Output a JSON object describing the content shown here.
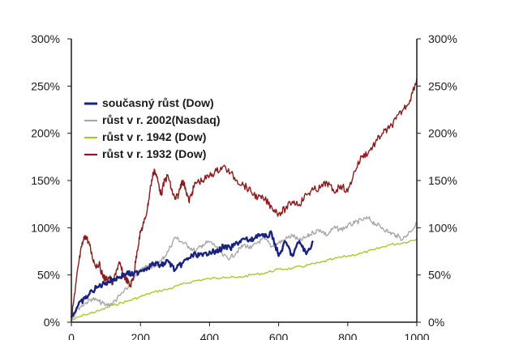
{
  "chart_data": {
    "type": "line",
    "title": "",
    "xlabel": "",
    "ylabel": "",
    "xlim": [
      0,
      1000
    ],
    "ylim": [
      0,
      300
    ],
    "x_ticks": [
      0,
      200,
      400,
      600,
      800,
      1000
    ],
    "x_tick_labels": [
      "0",
      "200",
      "400",
      "600",
      "800",
      "1000"
    ],
    "y_ticks": [
      0,
      50,
      100,
      150,
      200,
      250,
      300
    ],
    "y_tick_labels": [
      "0%",
      "50%",
      "100%",
      "150%",
      "200%",
      "250%",
      "300%"
    ],
    "right_axis_tick_labels": [
      "0%",
      "50%",
      "100%",
      "150%",
      "200%",
      "250%",
      "300%"
    ],
    "grid": false,
    "legend_position": "top-left",
    "legend": [
      {
        "label": "současný růst (Dow)",
        "color": "#1a237e"
      },
      {
        "label": "růst v r. 2002(Nasdaq)",
        "color": "#a8a8a8"
      },
      {
        "label": "růst v r. 1942 (Dow)",
        "color": "#a8c830"
      },
      {
        "label": "růst v r. 1932 (Dow)",
        "color": "#8b1a1a"
      }
    ],
    "series": [
      {
        "name": "současný růst (Dow)",
        "color": "#1a237e",
        "x": [
          0,
          20,
          40,
          60,
          80,
          100,
          120,
          140,
          160,
          180,
          200,
          220,
          240,
          260,
          280,
          300,
          320,
          340,
          360,
          380,
          400,
          420,
          440,
          460,
          480,
          500,
          520,
          540,
          560,
          580,
          600,
          620,
          640,
          660,
          680,
          700
        ],
        "y": [
          5,
          18,
          25,
          33,
          38,
          42,
          45,
          48,
          52,
          50,
          55,
          58,
          62,
          60,
          65,
          55,
          62,
          68,
          72,
          70,
          75,
          74,
          80,
          78,
          84,
          88,
          86,
          93,
          90,
          94,
          70,
          85,
          70,
          86,
          72,
          86
        ]
      },
      {
        "name": "růst v r. 2002(Nasdaq)",
        "color": "#a8a8a8",
        "x": [
          0,
          20,
          40,
          60,
          80,
          100,
          120,
          140,
          160,
          180,
          200,
          220,
          240,
          260,
          280,
          300,
          320,
          340,
          360,
          380,
          400,
          420,
          440,
          460,
          480,
          500,
          520,
          540,
          560,
          580,
          600,
          620,
          640,
          660,
          680,
          700,
          720,
          740,
          760,
          780,
          800,
          820,
          840,
          860,
          880,
          900,
          920,
          940,
          960,
          980,
          1000
        ],
        "y": [
          3,
          15,
          20,
          25,
          22,
          18,
          20,
          28,
          35,
          45,
          55,
          60,
          58,
          65,
          75,
          90,
          85,
          80,
          75,
          82,
          85,
          80,
          70,
          68,
          75,
          82,
          78,
          85,
          88,
          80,
          84,
          88,
          92,
          86,
          90,
          95,
          98,
          92,
          100,
          98,
          102,
          105,
          108,
          110,
          104,
          100,
          95,
          92,
          88,
          96,
          104
        ]
      },
      {
        "name": "růst v r. 1942 (Dow)",
        "color": "#a8c830",
        "x": [
          0,
          40,
          80,
          120,
          160,
          200,
          240,
          280,
          320,
          360,
          400,
          440,
          480,
          520,
          560,
          600,
          640,
          680,
          720,
          760,
          800,
          840,
          880,
          920,
          960,
          1000
        ],
        "y": [
          2,
          8,
          12,
          18,
          22,
          27,
          32,
          35,
          40,
          44,
          46,
          48,
          47,
          50,
          52,
          56,
          57,
          60,
          63,
          67,
          70,
          73,
          77,
          82,
          84,
          88
        ]
      },
      {
        "name": "růst v r. 1932 (Dow)",
        "color": "#8b1a1a",
        "x": [
          0,
          10,
          20,
          30,
          40,
          50,
          60,
          70,
          80,
          90,
          100,
          110,
          120,
          130,
          140,
          150,
          160,
          170,
          180,
          190,
          200,
          210,
          220,
          230,
          240,
          250,
          260,
          270,
          280,
          290,
          300,
          310,
          320,
          330,
          340,
          350,
          360,
          380,
          400,
          420,
          440,
          460,
          480,
          500,
          520,
          540,
          560,
          580,
          600,
          620,
          640,
          660,
          680,
          700,
          720,
          740,
          760,
          780,
          800,
          820,
          840,
          860,
          880,
          900,
          920,
          940,
          960,
          980,
          1000
        ],
        "y": [
          5,
          30,
          60,
          80,
          92,
          85,
          70,
          60,
          62,
          50,
          45,
          48,
          40,
          55,
          62,
          50,
          45,
          38,
          48,
          75,
          95,
          105,
          120,
          145,
          162,
          150,
          135,
          150,
          155,
          140,
          130,
          135,
          150,
          143,
          128,
          138,
          148,
          150,
          155,
          160,
          165,
          158,
          150,
          145,
          138,
          132,
          130,
          122,
          115,
          120,
          128,
          125,
          135,
          140,
          142,
          148,
          138,
          145,
          138,
          160,
          175,
          180,
          190,
          200,
          205,
          215,
          225,
          235,
          258
        ]
      }
    ]
  }
}
